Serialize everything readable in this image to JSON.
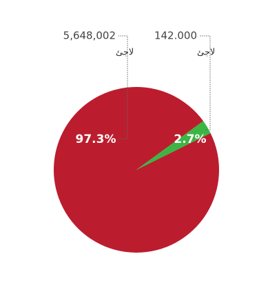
{
  "chart_data": {
    "type": "pie",
    "values": [
      97.3,
      2.7
    ],
    "value_labels": [
      "97.3%",
      "2.7%"
    ],
    "colors": [
      "#bb1d2e",
      "#3cb544"
    ],
    "annotations": [
      {
        "text": "5,648,002",
        "sub": "لاجئ"
      },
      {
        "text": "142.000",
        "sub": "لاجئ"
      }
    ]
  }
}
